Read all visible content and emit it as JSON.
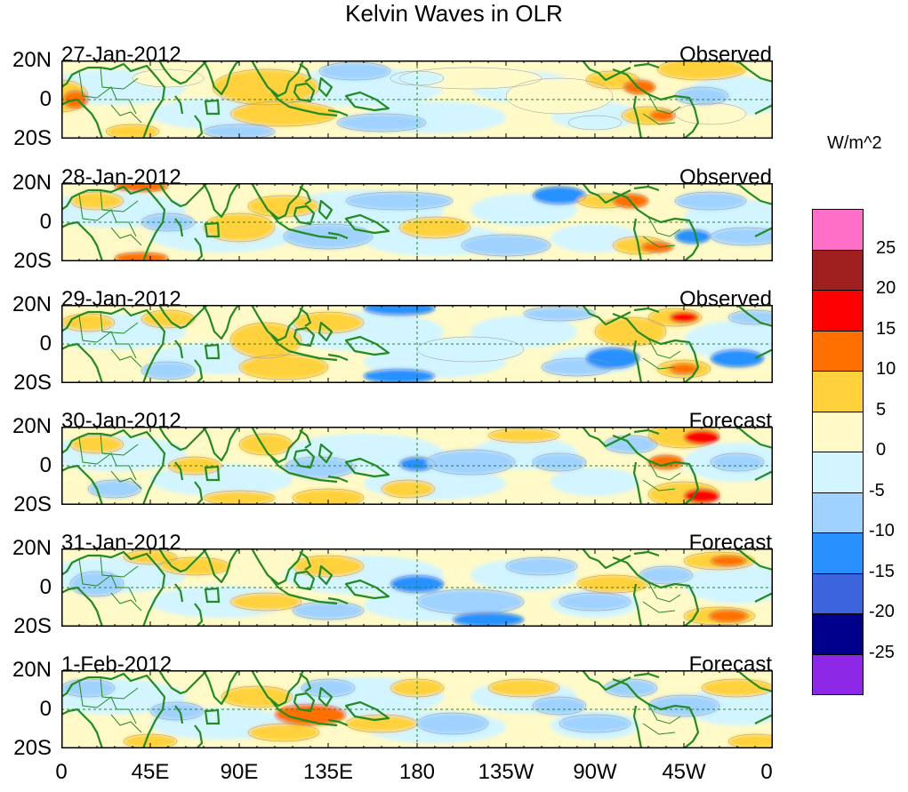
{
  "title": "Kelvin Waves in OLR",
  "units": "W/m^2",
  "latitude_labels": [
    "20N",
    "0",
    "20S"
  ],
  "longitude_labels": [
    "0",
    "45E",
    "90E",
    "135E",
    "180",
    "135W",
    "90W",
    "45W",
    "0"
  ],
  "panels": [
    {
      "date": "27-Jan-2012",
      "kind": "Observed"
    },
    {
      "date": "28-Jan-2012",
      "kind": "Observed"
    },
    {
      "date": "29-Jan-2012",
      "kind": "Observed"
    },
    {
      "date": "30-Jan-2012",
      "kind": "Forecast"
    },
    {
      "date": "31-Jan-2012",
      "kind": "Forecast"
    },
    {
      "date": "1-Feb-2012",
      "kind": "Forecast"
    }
  ],
  "colorbar": {
    "colors": [
      "#ff6ec7",
      "#a02020",
      "#ff0000",
      "#ff7000",
      "#ffd23c",
      "#fffac8",
      "#d2f5ff",
      "#a0d2ff",
      "#2891ff",
      "#3c64dc",
      "#00008c",
      "#8c28e6"
    ],
    "labels": [
      "25",
      "20",
      "15",
      "10",
      "5",
      "0",
      "-5",
      "-10",
      "-15",
      "-20",
      "-25"
    ]
  },
  "colors": {
    "coast": "#228b22",
    "equator": "#228b22"
  }
}
